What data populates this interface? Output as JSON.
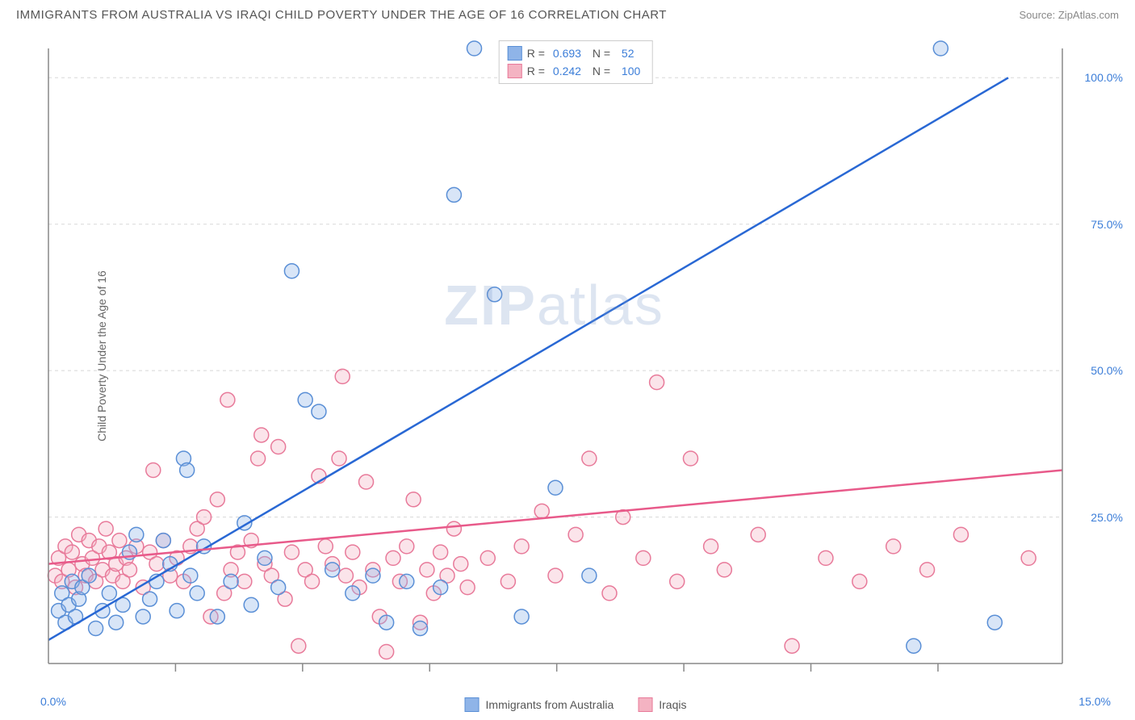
{
  "title": "IMMIGRANTS FROM AUSTRALIA VS IRAQI CHILD POVERTY UNDER THE AGE OF 16 CORRELATION CHART",
  "source": "Source: ZipAtlas.com",
  "watermark": "ZIPatlas",
  "chart": {
    "type": "scatter",
    "y_label": "Child Poverty Under the Age of 16",
    "xlim": [
      0,
      15
    ],
    "ylim": [
      0,
      105
    ],
    "x_tick_start": "0.0%",
    "x_tick_end": "15.0%",
    "y_ticks": [
      {
        "value": 25,
        "label": "25.0%"
      },
      {
        "value": 50,
        "label": "50.0%"
      },
      {
        "value": 75,
        "label": "75.0%"
      },
      {
        "value": 100,
        "label": "100.0%"
      }
    ],
    "x_minor_ticks": [
      1.88,
      3.76,
      5.64,
      7.52,
      9.4,
      11.28,
      13.16
    ],
    "grid_color": "#d8d8d8",
    "axis_color": "#888888",
    "background_color": "#ffffff",
    "marker_radius": 9,
    "marker_stroke_width": 1.5,
    "marker_fill_opacity": 0.35,
    "trend_line_width": 2.5,
    "series": [
      {
        "name": "Immigrants from Australia",
        "fill_color": "#8fb4e8",
        "stroke_color": "#5a8fd6",
        "line_color": "#2968d4",
        "R": "0.693",
        "N": "52",
        "trend": {
          "x1": 0,
          "y1": 4,
          "x2": 14.2,
          "y2": 100
        },
        "points": [
          [
            0.15,
            9
          ],
          [
            0.2,
            12
          ],
          [
            0.25,
            7
          ],
          [
            0.3,
            10
          ],
          [
            0.35,
            14
          ],
          [
            0.4,
            8
          ],
          [
            0.45,
            11
          ],
          [
            0.5,
            13
          ],
          [
            0.6,
            15
          ],
          [
            0.7,
            6
          ],
          [
            0.8,
            9
          ],
          [
            0.9,
            12
          ],
          [
            1.0,
            7
          ],
          [
            1.1,
            10
          ],
          [
            1.2,
            19
          ],
          [
            1.3,
            22
          ],
          [
            1.4,
            8
          ],
          [
            1.5,
            11
          ],
          [
            1.6,
            14
          ],
          [
            1.7,
            21
          ],
          [
            1.8,
            17
          ],
          [
            1.9,
            9
          ],
          [
            2.0,
            35
          ],
          [
            2.05,
            33
          ],
          [
            2.1,
            15
          ],
          [
            2.2,
            12
          ],
          [
            2.3,
            20
          ],
          [
            2.5,
            8
          ],
          [
            2.7,
            14
          ],
          [
            2.9,
            24
          ],
          [
            3.0,
            10
          ],
          [
            3.2,
            18
          ],
          [
            3.4,
            13
          ],
          [
            3.6,
            67
          ],
          [
            3.8,
            45
          ],
          [
            4.0,
            43
          ],
          [
            4.2,
            16
          ],
          [
            4.5,
            12
          ],
          [
            4.8,
            15
          ],
          [
            5.0,
            7
          ],
          [
            5.3,
            14
          ],
          [
            5.5,
            6
          ],
          [
            5.8,
            13
          ],
          [
            6.0,
            80
          ],
          [
            6.3,
            105
          ],
          [
            6.6,
            63
          ],
          [
            7.0,
            8
          ],
          [
            7.5,
            30
          ],
          [
            8.0,
            15
          ],
          [
            12.8,
            3
          ],
          [
            13.2,
            105
          ],
          [
            14.0,
            7
          ]
        ]
      },
      {
        "name": "Iraqis",
        "fill_color": "#f4b3c2",
        "stroke_color": "#e87a9a",
        "line_color": "#e85a8a",
        "R": "0.242",
        "N": "100",
        "trend": {
          "x1": 0,
          "y1": 17,
          "x2": 15,
          "y2": 33
        },
        "points": [
          [
            0.1,
            15
          ],
          [
            0.15,
            18
          ],
          [
            0.2,
            14
          ],
          [
            0.25,
            20
          ],
          [
            0.3,
            16
          ],
          [
            0.35,
            19
          ],
          [
            0.4,
            13
          ],
          [
            0.45,
            22
          ],
          [
            0.5,
            17
          ],
          [
            0.55,
            15
          ],
          [
            0.6,
            21
          ],
          [
            0.65,
            18
          ],
          [
            0.7,
            14
          ],
          [
            0.75,
            20
          ],
          [
            0.8,
            16
          ],
          [
            0.85,
            23
          ],
          [
            0.9,
            19
          ],
          [
            0.95,
            15
          ],
          [
            1.0,
            17
          ],
          [
            1.05,
            21
          ],
          [
            1.1,
            14
          ],
          [
            1.15,
            18
          ],
          [
            1.2,
            16
          ],
          [
            1.3,
            20
          ],
          [
            1.4,
            13
          ],
          [
            1.5,
            19
          ],
          [
            1.55,
            33
          ],
          [
            1.6,
            17
          ],
          [
            1.7,
            21
          ],
          [
            1.8,
            15
          ],
          [
            1.9,
            18
          ],
          [
            2.0,
            14
          ],
          [
            2.1,
            20
          ],
          [
            2.2,
            23
          ],
          [
            2.3,
            25
          ],
          [
            2.4,
            8
          ],
          [
            2.5,
            28
          ],
          [
            2.6,
            12
          ],
          [
            2.65,
            45
          ],
          [
            2.7,
            16
          ],
          [
            2.8,
            19
          ],
          [
            2.9,
            14
          ],
          [
            3.0,
            21
          ],
          [
            3.1,
            35
          ],
          [
            3.15,
            39
          ],
          [
            3.2,
            17
          ],
          [
            3.3,
            15
          ],
          [
            3.4,
            37
          ],
          [
            3.5,
            11
          ],
          [
            3.6,
            19
          ],
          [
            3.7,
            3
          ],
          [
            3.8,
            16
          ],
          [
            3.9,
            14
          ],
          [
            4.0,
            32
          ],
          [
            4.1,
            20
          ],
          [
            4.2,
            17
          ],
          [
            4.3,
            35
          ],
          [
            4.35,
            49
          ],
          [
            4.4,
            15
          ],
          [
            4.5,
            19
          ],
          [
            4.6,
            13
          ],
          [
            4.7,
            31
          ],
          [
            4.8,
            16
          ],
          [
            4.9,
            8
          ],
          [
            5.0,
            2
          ],
          [
            5.1,
            18
          ],
          [
            5.2,
            14
          ],
          [
            5.3,
            20
          ],
          [
            5.4,
            28
          ],
          [
            5.5,
            7
          ],
          [
            5.6,
            16
          ],
          [
            5.7,
            12
          ],
          [
            5.8,
            19
          ],
          [
            5.9,
            15
          ],
          [
            6.0,
            23
          ],
          [
            6.1,
            17
          ],
          [
            6.2,
            13
          ],
          [
            6.5,
            18
          ],
          [
            6.8,
            14
          ],
          [
            7.0,
            20
          ],
          [
            7.3,
            26
          ],
          [
            7.5,
            15
          ],
          [
            7.8,
            22
          ],
          [
            8.0,
            35
          ],
          [
            8.3,
            12
          ],
          [
            8.5,
            25
          ],
          [
            8.8,
            18
          ],
          [
            9.0,
            48
          ],
          [
            9.3,
            14
          ],
          [
            9.5,
            35
          ],
          [
            9.8,
            20
          ],
          [
            10.0,
            16
          ],
          [
            10.5,
            22
          ],
          [
            11.0,
            3
          ],
          [
            11.5,
            18
          ],
          [
            12.0,
            14
          ],
          [
            12.5,
            20
          ],
          [
            13.0,
            16
          ],
          [
            13.5,
            22
          ],
          [
            14.5,
            18
          ]
        ]
      }
    ],
    "legend_bottom": [
      {
        "label": "Immigrants from Australia",
        "fill": "#8fb4e8",
        "stroke": "#5a8fd6"
      },
      {
        "label": "Iraqis",
        "fill": "#f4b3c2",
        "stroke": "#e87a9a"
      }
    ]
  }
}
